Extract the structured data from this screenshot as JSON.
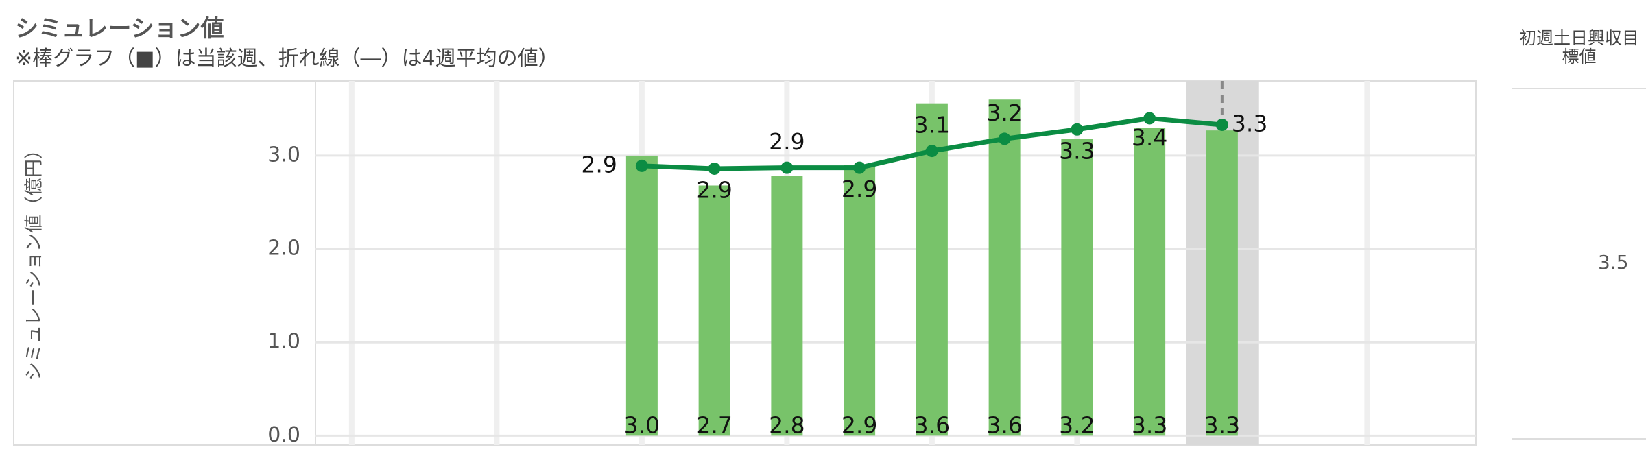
{
  "title": "シミュレーション値",
  "subtitle": "※棒グラフ（■）は当該週、折れ線（―）は4週平均の値）",
  "target": {
    "label": "初週土日興収目標値",
    "value": 3.5
  },
  "chart_data": {
    "type": "bar",
    "y_label": "シミュレーション値（億円）",
    "categories": [
      null,
      null,
      null,
      null,
      null,
      null,
      null,
      null,
      null,
      null,
      null,
      null,
      null,
      null,
      null,
      null
    ],
    "series": [
      {
        "type": "bar",
        "color": "#78c36a",
        "values": [
          null,
          null,
          null,
          null,
          3.0,
          2.68,
          2.78,
          2.9,
          3.56,
          3.6,
          3.18,
          3.3,
          3.27,
          null,
          null,
          null
        ],
        "value_labels": [
          null,
          null,
          null,
          null,
          "3.0",
          "2.7",
          "2.8",
          "2.9",
          "3.6",
          "3.6",
          "3.2",
          "3.3",
          "3.3",
          null,
          null,
          null
        ]
      },
      {
        "type": "line",
        "color": "#0b8c43",
        "values": [
          null,
          null,
          null,
          null,
          2.89,
          2.86,
          2.87,
          2.87,
          3.05,
          3.18,
          3.28,
          3.4,
          3.33,
          null,
          null,
          null
        ],
        "value_labels": [
          null,
          null,
          null,
          null,
          "2.9",
          "2.9",
          "2.9",
          "2.9",
          "3.1",
          "3.2",
          "3.3",
          "3.4",
          "3.3",
          null,
          null,
          null
        ]
      }
    ],
    "highlight_index": 12,
    "ylim": [
      -0.1,
      3.8
    ],
    "yticks": [
      {
        "value": 0,
        "label": "0.0"
      },
      {
        "value": 1,
        "label": "1.0"
      },
      {
        "value": 2,
        "label": "2.0"
      },
      {
        "value": 3,
        "label": "3.0"
      }
    ],
    "grid": true
  }
}
